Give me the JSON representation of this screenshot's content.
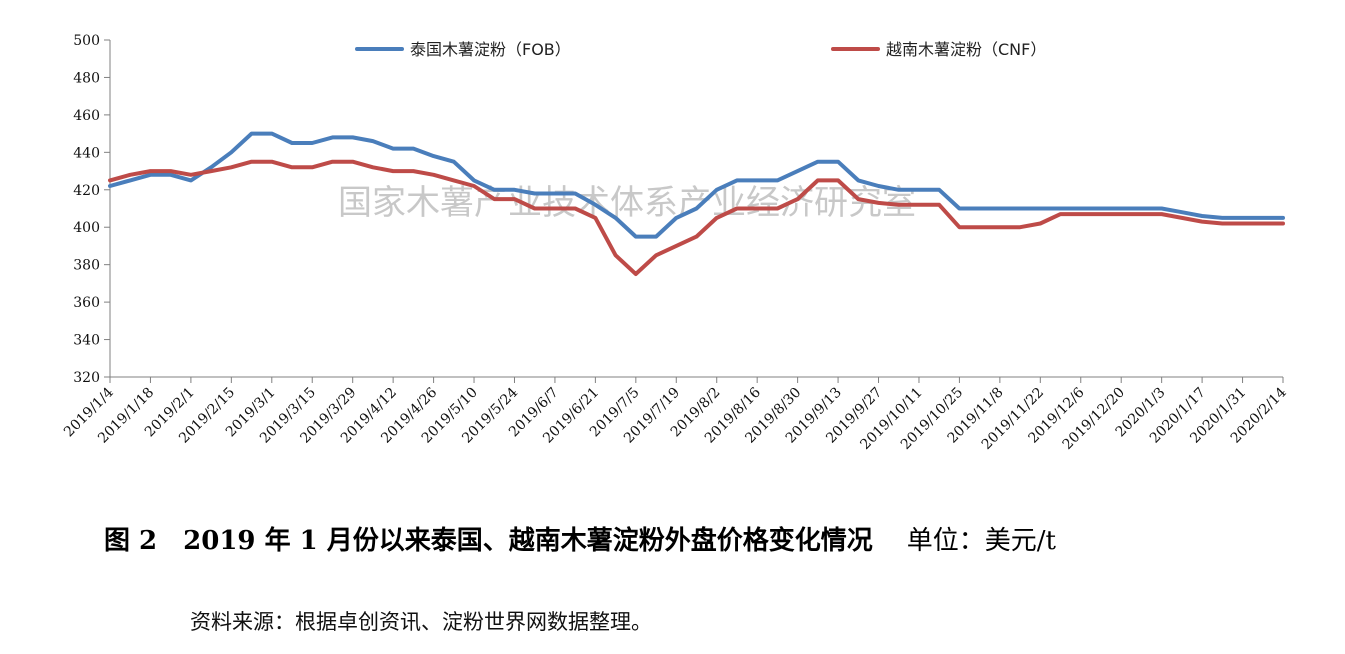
{
  "watermark": "国家木薯产业技术体系产业经济研究室",
  "caption": {
    "figure_no": "图 2",
    "title": "2019 年 1 月份以来泰国、越南木薯淀粉外盘价格变化情况",
    "unit": "单位：美元/t"
  },
  "source": "资料来源：根据卓创资讯、淀粉世界网数据整理。",
  "colors": {
    "fob": "#4a7ebb",
    "cnf": "#be4b48",
    "axis": "#808080"
  },
  "chart_data": {
    "type": "line",
    "title": "",
    "xlabel": "",
    "ylabel": "",
    "ylim": [
      320,
      500
    ],
    "yticks": [
      320,
      340,
      360,
      380,
      400,
      420,
      440,
      460,
      480,
      500
    ],
    "grid": false,
    "legend": "top",
    "x": [
      "2019/1/4",
      "2019/1/11",
      "2019/1/18",
      "2019/1/25",
      "2019/2/1",
      "2019/2/8",
      "2019/2/15",
      "2019/2/22",
      "2019/3/1",
      "2019/3/8",
      "2019/3/15",
      "2019/3/22",
      "2019/3/29",
      "2019/4/5",
      "2019/4/12",
      "2019/4/19",
      "2019/4/26",
      "2019/5/3",
      "2019/5/10",
      "2019/5/17",
      "2019/5/24",
      "2019/5/31",
      "2019/6/7",
      "2019/6/14",
      "2019/6/21",
      "2019/6/28",
      "2019/7/5",
      "2019/7/12",
      "2019/7/19",
      "2019/7/26",
      "2019/8/2",
      "2019/8/9",
      "2019/8/16",
      "2019/8/23",
      "2019/8/30",
      "2019/9/6",
      "2019/9/13",
      "2019/9/20",
      "2019/9/27",
      "2019/10/4",
      "2019/10/11",
      "2019/10/18",
      "2019/10/25",
      "2019/11/1",
      "2019/11/8",
      "2019/11/15",
      "2019/11/22",
      "2019/11/29",
      "2019/12/6",
      "2019/12/13",
      "2019/12/20",
      "2019/12/27",
      "2020/1/3",
      "2020/1/10",
      "2020/1/17",
      "2020/1/24",
      "2020/1/31",
      "2020/2/7",
      "2020/2/14"
    ],
    "xtick_labels": [
      "2019/1/4",
      "2019/1/18",
      "2019/2/1",
      "2019/2/15",
      "2019/3/1",
      "2019/3/15",
      "2019/3/29",
      "2019/4/12",
      "2019/4/26",
      "2019/5/10",
      "2019/5/24",
      "2019/6/7",
      "2019/6/21",
      "2019/7/5",
      "2019/7/19",
      "2019/8/2",
      "2019/8/16",
      "2019/8/30",
      "2019/9/13",
      "2019/9/27",
      "2019/10/11",
      "2019/10/25",
      "2019/11/8",
      "2019/11/22",
      "2019/12/6",
      "2019/12/20",
      "2020/1/3",
      "2020/1/17",
      "2020/1/31",
      "2020/2/14"
    ],
    "series": [
      {
        "name": "泰国木薯淀粉（FOB）",
        "color": "#4a7ebb",
        "values": [
          422,
          425,
          428,
          428,
          425,
          432,
          440,
          450,
          450,
          445,
          445,
          448,
          448,
          446,
          442,
          442,
          438,
          435,
          425,
          420,
          420,
          418,
          418,
          418,
          412,
          405,
          395,
          395,
          405,
          410,
          420,
          425,
          425,
          425,
          430,
          435,
          435,
          425,
          422,
          420,
          420,
          420,
          410,
          410,
          410,
          410,
          410,
          410,
          410,
          410,
          410,
          410,
          410,
          408,
          406,
          405,
          405,
          405,
          405
        ]
      },
      {
        "name": "越南木薯淀粉（CNF）",
        "color": "#be4b48",
        "values": [
          425,
          428,
          430,
          430,
          428,
          430,
          432,
          435,
          435,
          432,
          432,
          435,
          435,
          432,
          430,
          430,
          428,
          425,
          422,
          415,
          415,
          410,
          410,
          410,
          405,
          385,
          375,
          385,
          390,
          395,
          405,
          410,
          410,
          410,
          415,
          425,
          425,
          415,
          413,
          412,
          412,
          412,
          400,
          400,
          400,
          400,
          402,
          407,
          407,
          407,
          407,
          407,
          407,
          405,
          403,
          402,
          402,
          402,
          402
        ]
      }
    ]
  }
}
